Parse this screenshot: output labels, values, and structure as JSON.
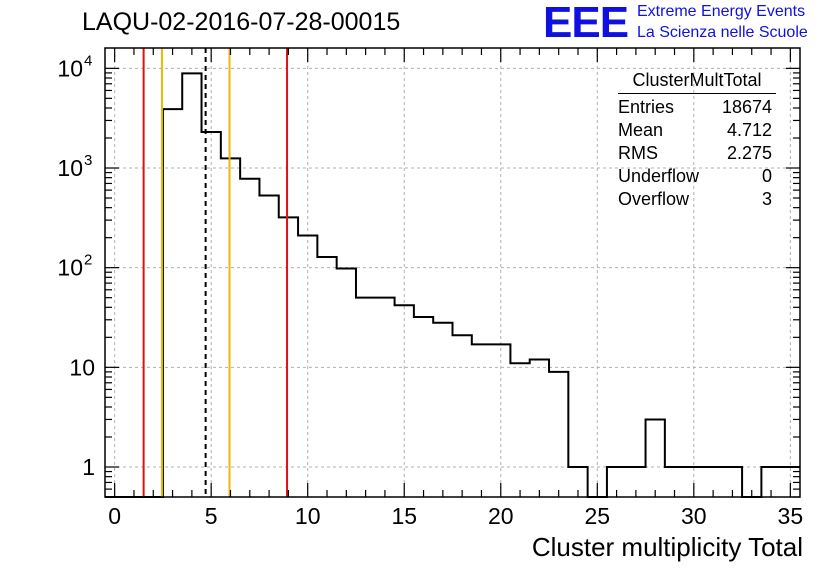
{
  "header": {
    "title": "LAQU-02-2016-07-28-00015",
    "logo_text": "EEE",
    "logo_line1": "Extreme Energy Events",
    "logo_line2": "La Scienza nelle Scuole"
  },
  "stats": {
    "name": "ClusterMultTotal",
    "rows": [
      {
        "label": "Entries",
        "value": "18674"
      },
      {
        "label": "Mean",
        "value": "4.712"
      },
      {
        "label": "RMS",
        "value": "2.275"
      },
      {
        "label": "Underflow",
        "value": "0"
      },
      {
        "label": "Overflow",
        "value": "3"
      }
    ]
  },
  "chart_data": {
    "type": "histogram",
    "title": "LAQU-02-2016-07-28-00015",
    "xlabel": "Cluster multiplicity Total",
    "ylabel": "",
    "xlim": [
      -0.5,
      35.5
    ],
    "ylim": [
      0.5,
      16000
    ],
    "yscale": "log",
    "grid": true,
    "bin_width": 1,
    "bin_edges_start": -0.5,
    "bins": [
      {
        "x": 0,
        "count": 0
      },
      {
        "x": 1,
        "count": 0
      },
      {
        "x": 2,
        "count": 0
      },
      {
        "x": 3,
        "count": 3900
      },
      {
        "x": 4,
        "count": 8900
      },
      {
        "x": 5,
        "count": 2300
      },
      {
        "x": 6,
        "count": 1250
      },
      {
        "x": 7,
        "count": 780
      },
      {
        "x": 8,
        "count": 530
      },
      {
        "x": 9,
        "count": 320
      },
      {
        "x": 10,
        "count": 210
      },
      {
        "x": 11,
        "count": 128
      },
      {
        "x": 12,
        "count": 98
      },
      {
        "x": 13,
        "count": 50
      },
      {
        "x": 14,
        "count": 50
      },
      {
        "x": 15,
        "count": 42
      },
      {
        "x": 16,
        "count": 32
      },
      {
        "x": 17,
        "count": 28
      },
      {
        "x": 18,
        "count": 21
      },
      {
        "x": 19,
        "count": 17
      },
      {
        "x": 20,
        "count": 17
      },
      {
        "x": 21,
        "count": 11
      },
      {
        "x": 22,
        "count": 12
      },
      {
        "x": 23,
        "count": 9
      },
      {
        "x": 24,
        "count": 1
      },
      {
        "x": 25,
        "count": 0
      },
      {
        "x": 26,
        "count": 1
      },
      {
        "x": 27,
        "count": 1
      },
      {
        "x": 28,
        "count": 3
      },
      {
        "x": 29,
        "count": 1
      },
      {
        "x": 30,
        "count": 1
      },
      {
        "x": 31,
        "count": 1
      },
      {
        "x": 32,
        "count": 1
      },
      {
        "x": 33,
        "count": 0
      },
      {
        "x": 34,
        "count": 1
      },
      {
        "x": 35,
        "count": 1
      }
    ],
    "x_ticks": [
      0,
      5,
      10,
      15,
      20,
      25,
      30,
      35
    ],
    "y_ticks": [
      {
        "value": 1,
        "label": "1"
      },
      {
        "value": 10,
        "label": "10"
      },
      {
        "value": 100,
        "label": "10",
        "exp": "2"
      },
      {
        "value": 1000,
        "label": "10",
        "exp": "3"
      },
      {
        "value": 10000,
        "label": "10",
        "exp": "4"
      }
    ],
    "vertical_lines": [
      {
        "x": 1.5,
        "color": "#e01010",
        "style": "solid"
      },
      {
        "x": 2.45,
        "color": "#f0b800",
        "style": "solid"
      },
      {
        "x": 4.712,
        "color": "#000000",
        "style": "dashed"
      },
      {
        "x": 5.95,
        "color": "#f0b800",
        "style": "solid"
      },
      {
        "x": 8.93,
        "color": "#e01010",
        "style": "solid"
      }
    ]
  }
}
